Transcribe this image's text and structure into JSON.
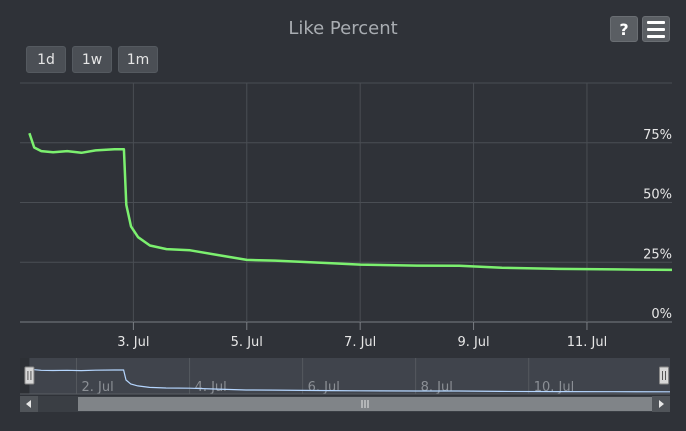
{
  "chart_data": {
    "type": "line",
    "title": "Like Percent",
    "series": [
      {
        "color": "#7cf06f",
        "points": [
          [
            "2024-07-01T04:00",
            79
          ],
          [
            "2024-07-01T06:00",
            73
          ],
          [
            "2024-07-01T09:00",
            71.5
          ],
          [
            "2024-07-01T14:00",
            71
          ],
          [
            "2024-07-01T20:00",
            71.5
          ],
          [
            "2024-07-02T02:00",
            70.8
          ],
          [
            "2024-07-02T08:00",
            71.8
          ],
          [
            "2024-07-02T16:00",
            72.3
          ],
          [
            "2024-07-02T20:00",
            72.3
          ],
          [
            "2024-07-02T21:00",
            49
          ],
          [
            "2024-07-02T23:00",
            40
          ],
          [
            "2024-07-03T02:00",
            35.5
          ],
          [
            "2024-07-03T07:00",
            32
          ],
          [
            "2024-07-03T14:00",
            30.5
          ],
          [
            "2024-07-04T00:00",
            30
          ],
          [
            "2024-07-04T12:00",
            28
          ],
          [
            "2024-07-05T00:00",
            26
          ],
          [
            "2024-07-05T12:00",
            25.7
          ],
          [
            "2024-07-06T12:00",
            24.6
          ],
          [
            "2024-07-07T00:00",
            24
          ],
          [
            "2024-07-08T00:00",
            23.6
          ],
          [
            "2024-07-08T18:00",
            23.5
          ],
          [
            "2024-07-09T12:00",
            22.7
          ],
          [
            "2024-07-10T12:00",
            22.2
          ],
          [
            "2024-07-11T12:00",
            22
          ],
          [
            "2024-07-12T12:00",
            21.8
          ]
        ]
      }
    ],
    "x_axis": {
      "type": "datetime",
      "range": [
        "2024-07-01T00:00",
        "2024-07-12T12:00"
      ],
      "ticks": [
        "2024-07-03",
        "2024-07-05",
        "2024-07-07",
        "2024-07-09",
        "2024-07-11"
      ],
      "tick_labels": [
        "3. Jul",
        "5. Jul",
        "7. Jul",
        "9. Jul",
        "11. Jul"
      ]
    },
    "y_axis": {
      "range": [
        0,
        100
      ],
      "ticks": [
        0,
        25,
        50,
        75
      ],
      "tick_labels": [
        "0%",
        "25%",
        "50%",
        "75%"
      ],
      "side": "right"
    },
    "grid": true,
    "navigator": {
      "range": [
        "2024-07-01T00:00",
        "2024-07-12T12:00"
      ],
      "ticks": [
        "2024-07-02",
        "2024-07-04",
        "2024-07-06",
        "2024-07-08",
        "2024-07-10"
      ],
      "tick_labels": [
        "2. Jul",
        "4. Jul",
        "6. Jul",
        "8. Jul",
        "10. Jul"
      ],
      "selected": [
        "2024-07-01T04:00",
        "2024-07-12T12:00"
      ],
      "line_color": "#b5d6ff"
    },
    "range_selector": [
      "1d",
      "1w",
      "1m"
    ]
  },
  "colors": {
    "background": "#2f3238",
    "line": "#7cf06f",
    "grid": "#4a4e54",
    "axis_text": "#e6e6e6"
  },
  "toolbar": {
    "help_label": "?",
    "help_icon": "question-icon",
    "menu_icon": "hamburger-icon"
  }
}
